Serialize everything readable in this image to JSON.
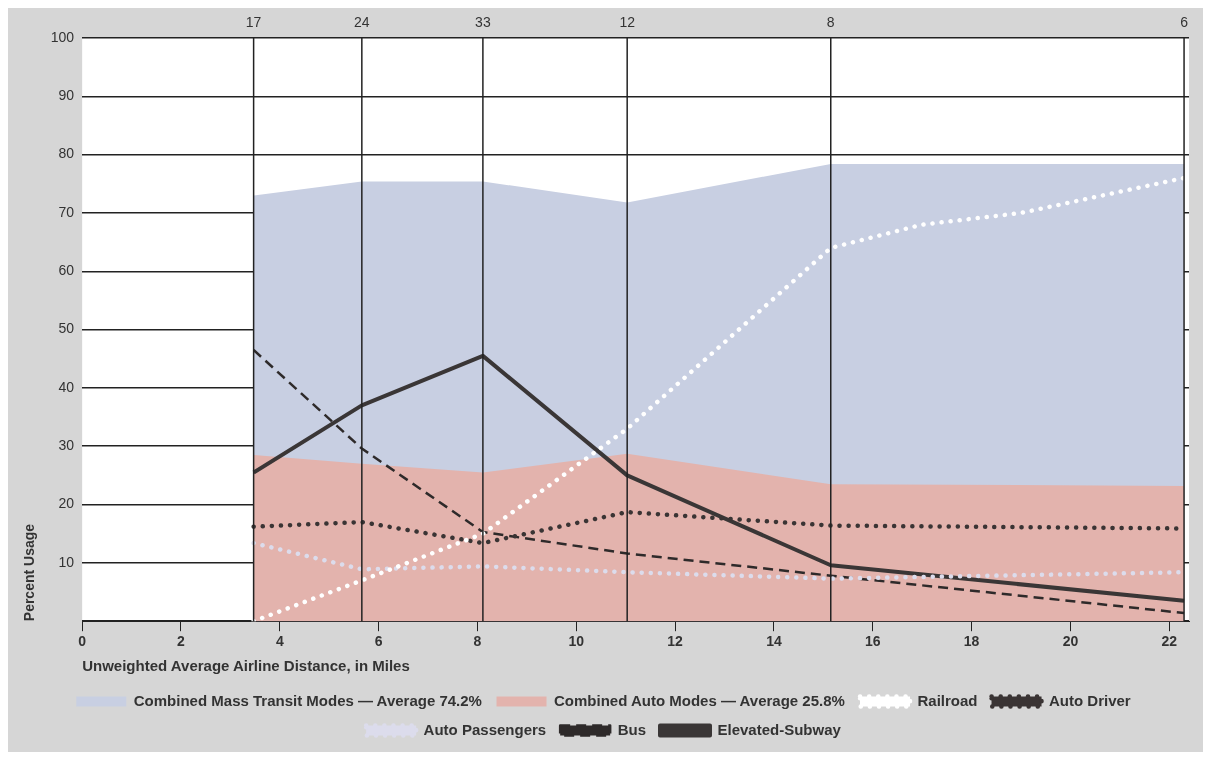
{
  "chart_data": {
    "type": "line",
    "xlabel": "Unweighted Average Airline Distance, in Miles",
    "ylabel": "Percent Usage",
    "x": [
      3.47,
      5.66,
      8.11,
      11.03,
      15.15,
      22.3
    ],
    "xlim": [
      0,
      22.4
    ],
    "xticks": [
      0,
      2,
      4,
      6,
      8,
      10,
      12,
      14,
      16,
      18,
      20,
      22
    ],
    "ref_lines": [
      {
        "axis": "x",
        "value": 3.47
      },
      {
        "axis": "x",
        "value": 5.66
      },
      {
        "axis": "x",
        "value": 8.11
      },
      {
        "axis": "x",
        "value": 11.03
      },
      {
        "axis": "x",
        "value": 15.15
      },
      {
        "axis": "x",
        "value": 22.3
      }
    ],
    "annotations": [
      {
        "text": "17",
        "x": 3.47,
        "y": 100
      },
      {
        "text": "24",
        "x": 5.66,
        "y": 100
      },
      {
        "text": "33",
        "x": 8.11,
        "y": 100
      },
      {
        "text": "12",
        "x": 11.03,
        "y": 100
      },
      {
        "text": "8",
        "x": 15.15,
        "y": 100
      },
      {
        "text": "6",
        "x": 22.3,
        "y": 100
      }
    ],
    "ylim": [
      0,
      100
    ],
    "yticks": [
      {
        "value": 0,
        "label": null
      },
      10,
      20,
      30,
      40,
      50,
      60,
      70,
      80,
      90,
      100
    ],
    "grid": "y",
    "legend": "bottom",
    "series": [
      {
        "name": "Combined Mass Transit Modes — Average 74.2%",
        "type": "area",
        "color": "#c8cfe2",
        "values": [
          73,
          75.4,
          75.4,
          71.8,
          78.4,
          78.4
        ]
      },
      {
        "name": "Combined Auto Modes — Average 25.8%",
        "type": "area",
        "color": "#e3b3ad",
        "values": [
          28.5,
          27,
          25.5,
          28.7,
          23.5,
          23.2
        ]
      },
      {
        "name": "Railroad",
        "type": "line",
        "color": "#ffffff",
        "line_style": "dotted",
        "x": [
          3.47,
          5.66,
          8.11,
          11.03,
          15.15,
          17,
          19,
          22.3
        ],
        "values": [
          0,
          7,
          15,
          33,
          64,
          68,
          70,
          76
        ]
      },
      {
        "name": "Auto Driver",
        "type": "line",
        "color": "#3a3434",
        "line_style": "dotted",
        "values": [
          16.2,
          17,
          13.4,
          18.7,
          16.4,
          15.9
        ]
      },
      {
        "name": "Auto Passengers",
        "type": "line",
        "color": "#dcdcec",
        "line_style": "dotted",
        "values": [
          13.4,
          8.9,
          9.4,
          8.4,
          7.3,
          8.4
        ]
      },
      {
        "name": "Bus",
        "type": "line",
        "color": "#2e2a2a",
        "line_style": "dashed",
        "values": [
          46.5,
          29.6,
          15.3,
          11.6,
          7.8,
          1.4
        ]
      },
      {
        "name": "Elevated-Subway",
        "type": "line",
        "color": "#3a3636",
        "line_style": "solid",
        "values": [
          25.5,
          37,
          45.5,
          25,
          9.6,
          3.5
        ]
      }
    ]
  }
}
